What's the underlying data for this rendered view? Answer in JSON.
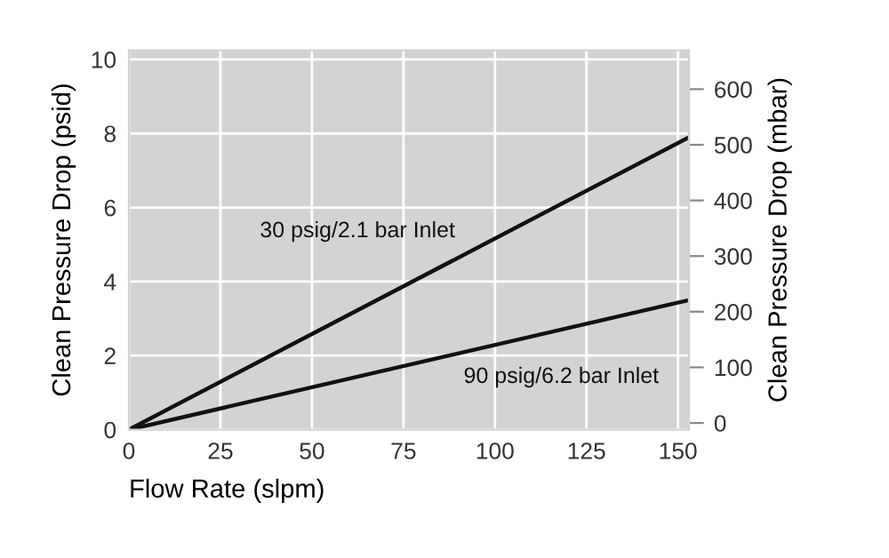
{
  "chart_data": {
    "type": "line",
    "xlabel": "Flow Rate (slpm)",
    "ylabel": "Clean Pressure Drop (psid)",
    "y2label": "Clean Pressure Drop (mbar)",
    "x": [
      0,
      153
    ],
    "series": [
      {
        "name": "30 psig/2.1 bar Inlet",
        "color": "#111111",
        "values": [
          0,
          7.9
        ]
      },
      {
        "name": "90 psig/6.2 bar Inlet",
        "color": "#111111",
        "values": [
          0,
          3.5
        ]
      }
    ],
    "xlim": [
      0,
      153
    ],
    "xticks": [
      0,
      25,
      50,
      75,
      100,
      125,
      150
    ],
    "ylim": [
      0,
      10.25
    ],
    "yticks": [
      0,
      2,
      4,
      6,
      8,
      10
    ],
    "y2lim": [
      -12,
      670
    ],
    "y2ticks": [
      0,
      100,
      200,
      300,
      400,
      500,
      600
    ],
    "grid": true,
    "line_style": "solid",
    "marker": "none"
  }
}
